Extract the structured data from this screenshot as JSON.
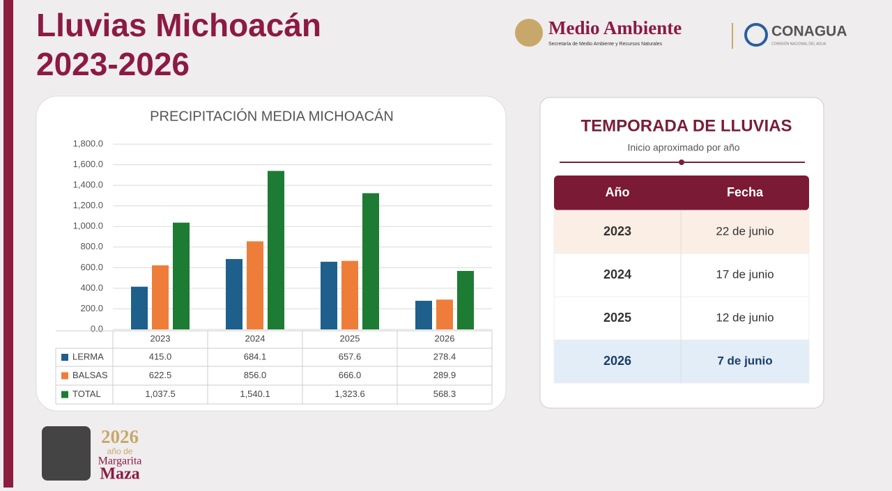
{
  "header": {
    "title": "Lluvias Michoacán",
    "subtitle": "2023-2026",
    "logo_main": "Medio Ambiente",
    "logo_main_sub": "Secretaría de Medio Ambiente y Recursos Naturales",
    "logo_second": "CONAGUA",
    "logo_second_sub": "COMISIÓN NACIONAL DEL AGUA"
  },
  "chart_data": {
    "type": "bar",
    "title": "PRECIPITACIÓN MEDIA MICHOACÁN",
    "categories": [
      "2023",
      "2024",
      "2025",
      "2026"
    ],
    "series": [
      {
        "name": "LERMA",
        "color": "#1f5f8b",
        "values": [
          415.0,
          684.1,
          657.6,
          278.4
        ],
        "value_labels": [
          "415.0",
          "684.1",
          "657.6",
          "278.4"
        ]
      },
      {
        "name": "BALSAS",
        "color": "#ef7d3a",
        "values": [
          622.5,
          856.0,
          666.0,
          289.9
        ],
        "value_labels": [
          "622.5",
          "856.0",
          "666.0",
          "289.9"
        ]
      },
      {
        "name": "TOTAL",
        "color": "#1e7b33",
        "values": [
          1037.5,
          1540.1,
          1323.6,
          568.3
        ],
        "value_labels": [
          "1,037.5",
          "1,540.1",
          "1,323.6",
          "568.3"
        ]
      }
    ],
    "ylim": [
      0,
      1800
    ],
    "yticks": [
      {
        "value": 0,
        "label": "0.0"
      },
      {
        "value": 200,
        "label": "200.0"
      },
      {
        "value": 400,
        "label": "400.0"
      },
      {
        "value": 600,
        "label": "600.0"
      },
      {
        "value": 800,
        "label": "800.0"
      },
      {
        "value": 1000,
        "label": "1,000.0"
      },
      {
        "value": 1200,
        "label": "1,200.0"
      },
      {
        "value": 1400,
        "label": "1,400.0"
      },
      {
        "value": 1600,
        "label": "1,600.0"
      },
      {
        "value": 1800,
        "label": "1,800.0"
      }
    ],
    "grid": true
  },
  "season": {
    "title": "TEMPORADA DE LLUVIAS",
    "subtitle": "Inicio aproximado por año",
    "table": {
      "columns": [
        "Año",
        "Fecha"
      ],
      "rows": [
        [
          "2023",
          "22 de junio"
        ],
        [
          "2024",
          "17 de junio"
        ],
        [
          "2025",
          "12 de junio"
        ],
        [
          "2026",
          "7 de junio"
        ]
      ]
    }
  },
  "footer": {
    "year": "2026",
    "line1": "año de",
    "line2": "Margarita",
    "line3": "Maza"
  }
}
